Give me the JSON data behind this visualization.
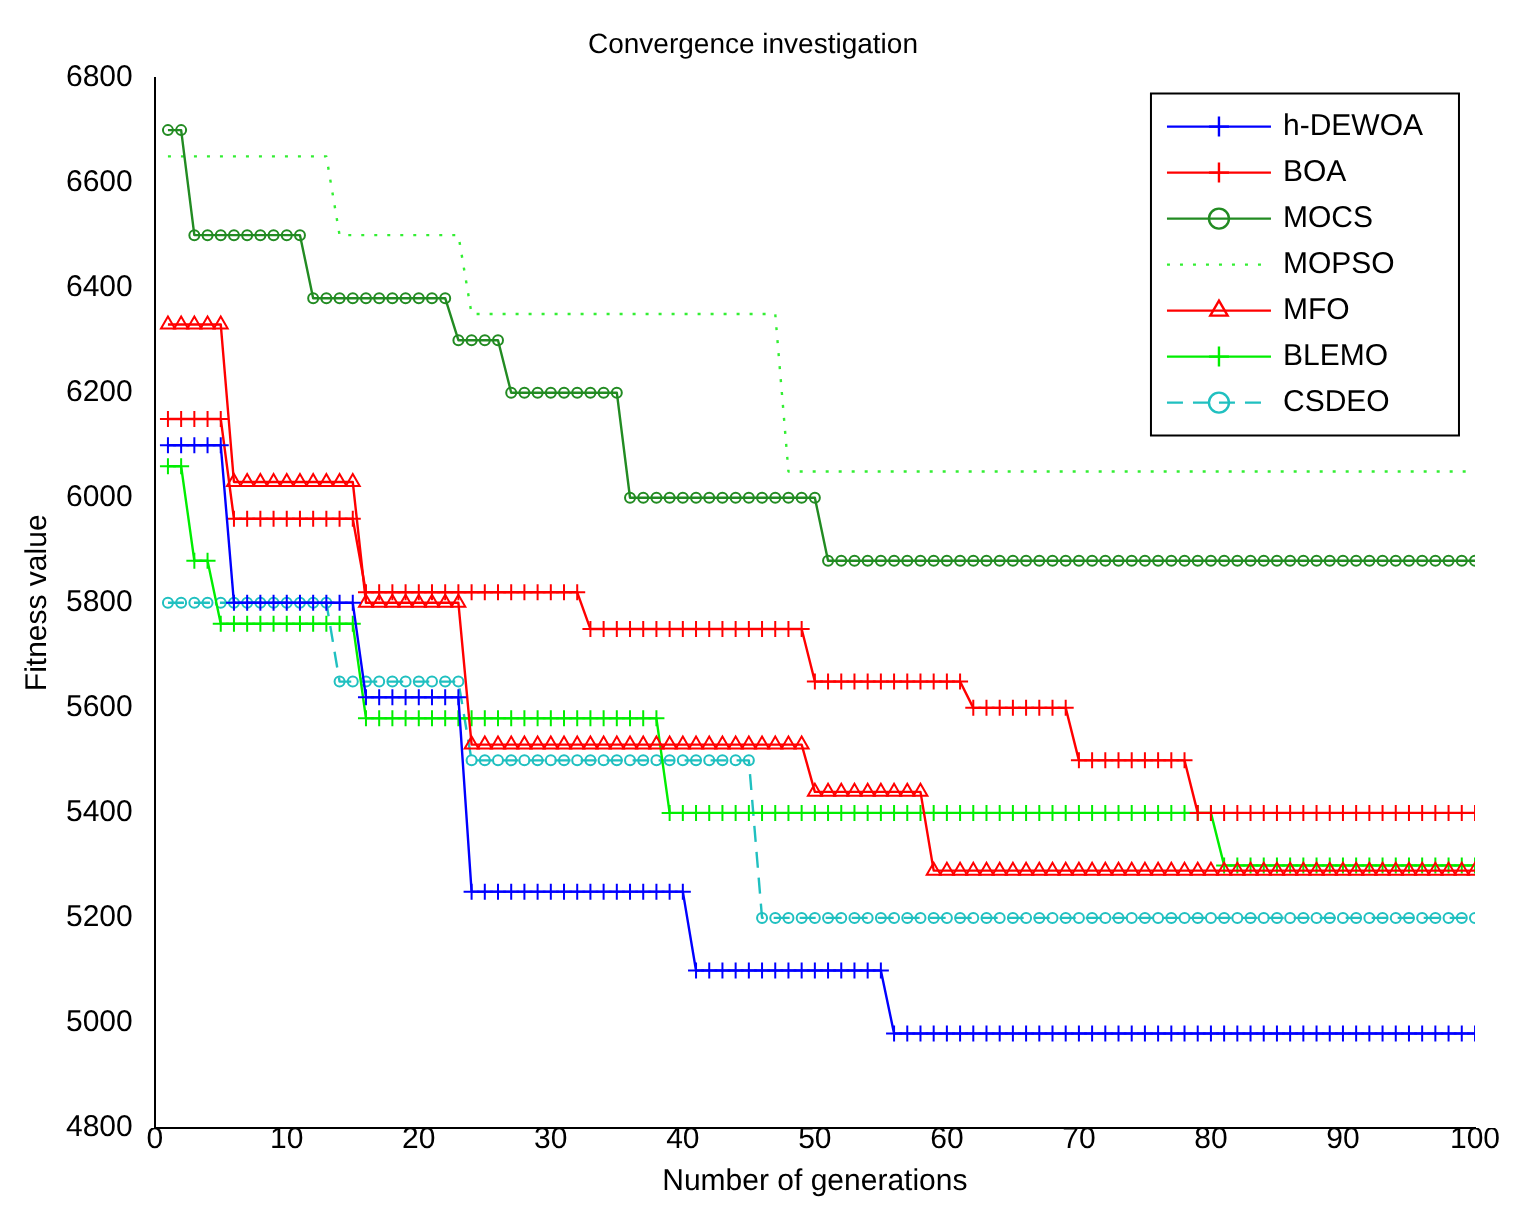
{
  "chart_data": {
    "type": "line",
    "title": "Convergence investigation",
    "xlabel": "Number of generations",
    "ylabel": "Fitness value",
    "x": [
      1,
      2,
      3,
      4,
      5,
      6,
      7,
      8,
      9,
      10,
      11,
      12,
      13,
      14,
      15,
      16,
      17,
      18,
      19,
      20,
      21,
      22,
      23,
      24,
      25,
      26,
      27,
      28,
      29,
      30,
      31,
      32,
      33,
      34,
      35,
      36,
      37,
      38,
      39,
      40,
      41,
      42,
      43,
      44,
      45,
      46,
      47,
      48,
      49,
      50,
      51,
      52,
      53,
      54,
      55,
      56,
      57,
      58,
      59,
      60,
      61,
      62,
      63,
      64,
      65,
      66,
      67,
      68,
      69,
      70,
      71,
      72,
      73,
      74,
      75,
      76,
      77,
      78,
      79,
      80,
      81,
      82,
      83,
      84,
      85,
      86,
      87,
      88,
      89,
      90,
      91,
      92,
      93,
      94,
      95,
      96,
      97,
      98,
      99,
      100
    ],
    "xlim": [
      0,
      100
    ],
    "xticks": [
      0,
      10,
      20,
      30,
      40,
      50,
      60,
      70,
      80,
      90,
      100
    ],
    "ylim": [
      4800,
      6800
    ],
    "yticks": [
      4800,
      5000,
      5200,
      5400,
      5600,
      5800,
      6000,
      6200,
      6400,
      6600,
      6800
    ],
    "grid": false,
    "legend": "top right",
    "series": [
      {
        "name": "h-DEWOA",
        "color": "#0000ff",
        "marker": "cross",
        "line_style": "solid",
        "values": [
          6100,
          6100,
          6100,
          6100,
          6100,
          5800,
          5800,
          5800,
          5800,
          5800,
          5800,
          5800,
          5800,
          5800,
          5800,
          5620,
          5620,
          5620,
          5620,
          5620,
          5620,
          5620,
          5620,
          5250,
          5250,
          5250,
          5250,
          5250,
          5250,
          5250,
          5250,
          5250,
          5250,
          5250,
          5250,
          5250,
          5250,
          5250,
          5250,
          5250,
          5100,
          5100,
          5100,
          5100,
          5100,
          5100,
          5100,
          5100,
          5100,
          5100,
          5100,
          5100,
          5100,
          5100,
          5100,
          4980,
          4980,
          4980,
          4980,
          4980,
          4980,
          4980,
          4980,
          4980,
          4980,
          4980,
          4980,
          4980,
          4980,
          4980,
          4980,
          4980,
          4980,
          4980,
          4980,
          4980,
          4980,
          4980,
          4980,
          4980,
          4980,
          4980,
          4980,
          4980,
          4980,
          4980,
          4980,
          4980,
          4980,
          4980,
          4980,
          4980,
          4980,
          4980,
          4980,
          4980,
          4980,
          4980,
          4980,
          4980
        ]
      },
      {
        "name": "BOA",
        "color": "#ff0000",
        "marker": "cross",
        "line_style": "solid",
        "values": [
          6150,
          6150,
          6150,
          6150,
          6150,
          5960,
          5960,
          5960,
          5960,
          5960,
          5960,
          5960,
          5960,
          5960,
          5960,
          5820,
          5820,
          5820,
          5820,
          5820,
          5820,
          5820,
          5820,
          5820,
          5820,
          5820,
          5820,
          5820,
          5820,
          5820,
          5820,
          5820,
          5750,
          5750,
          5750,
          5750,
          5750,
          5750,
          5750,
          5750,
          5750,
          5750,
          5750,
          5750,
          5750,
          5750,
          5750,
          5750,
          5750,
          5650,
          5650,
          5650,
          5650,
          5650,
          5650,
          5650,
          5650,
          5650,
          5650,
          5650,
          5650,
          5600,
          5600,
          5600,
          5600,
          5600,
          5600,
          5600,
          5600,
          5500,
          5500,
          5500,
          5500,
          5500,
          5500,
          5500,
          5500,
          5500,
          5400,
          5400,
          5400,
          5400,
          5400,
          5400,
          5400,
          5400,
          5400,
          5400,
          5400,
          5400,
          5400,
          5400,
          5400,
          5400,
          5400,
          5400,
          5400,
          5400,
          5400,
          5400
        ]
      },
      {
        "name": "MOCS",
        "color": "#228b22",
        "marker": "circle",
        "line_style": "solid",
        "values": [
          6700,
          6700,
          6500,
          6500,
          6500,
          6500,
          6500,
          6500,
          6500,
          6500,
          6500,
          6380,
          6380,
          6380,
          6380,
          6380,
          6380,
          6380,
          6380,
          6380,
          6380,
          6380,
          6300,
          6300,
          6300,
          6300,
          6200,
          6200,
          6200,
          6200,
          6200,
          6200,
          6200,
          6200,
          6200,
          6000,
          6000,
          6000,
          6000,
          6000,
          6000,
          6000,
          6000,
          6000,
          6000,
          6000,
          6000,
          6000,
          6000,
          6000,
          5880,
          5880,
          5880,
          5880,
          5880,
          5880,
          5880,
          5880,
          5880,
          5880,
          5880,
          5880,
          5880,
          5880,
          5880,
          5880,
          5880,
          5880,
          5880,
          5880,
          5880,
          5880,
          5880,
          5880,
          5880,
          5880,
          5880,
          5880,
          5880,
          5880,
          5880,
          5880,
          5880,
          5880,
          5880,
          5880,
          5880,
          5880,
          5880,
          5880,
          5880,
          5880,
          5880,
          5880,
          5880,
          5880,
          5880,
          5880,
          5880,
          5880
        ]
      },
      {
        "name": "MOPSO",
        "color": "#33ee33",
        "marker": "none",
        "line_style": "dotted",
        "values": [
          6650,
          6650,
          6650,
          6650,
          6650,
          6650,
          6650,
          6650,
          6650,
          6650,
          6650,
          6650,
          6650,
          6500,
          6500,
          6500,
          6500,
          6500,
          6500,
          6500,
          6500,
          6500,
          6500,
          6350,
          6350,
          6350,
          6350,
          6350,
          6350,
          6350,
          6350,
          6350,
          6350,
          6350,
          6350,
          6350,
          6350,
          6350,
          6350,
          6350,
          6350,
          6350,
          6350,
          6350,
          6350,
          6350,
          6350,
          6050,
          6050,
          6050,
          6050,
          6050,
          6050,
          6050,
          6050,
          6050,
          6050,
          6050,
          6050,
          6050,
          6050,
          6050,
          6050,
          6050,
          6050,
          6050,
          6050,
          6050,
          6050,
          6050,
          6050,
          6050,
          6050,
          6050,
          6050,
          6050,
          6050,
          6050,
          6050,
          6050,
          6050,
          6050,
          6050,
          6050,
          6050,
          6050,
          6050,
          6050,
          6050,
          6050,
          6050,
          6050,
          6050,
          6050,
          6050,
          6050,
          6050,
          6050,
          6050,
          6050
        ]
      },
      {
        "name": "MFO",
        "color": "#ff0000",
        "marker": "triangle",
        "line_style": "solid",
        "values": [
          6330,
          6330,
          6330,
          6330,
          6330,
          6030,
          6030,
          6030,
          6030,
          6030,
          6030,
          6030,
          6030,
          6030,
          6030,
          5800,
          5800,
          5800,
          5800,
          5800,
          5800,
          5800,
          5800,
          5530,
          5530,
          5530,
          5530,
          5530,
          5530,
          5530,
          5530,
          5530,
          5530,
          5530,
          5530,
          5530,
          5530,
          5530,
          5530,
          5530,
          5530,
          5530,
          5530,
          5530,
          5530,
          5530,
          5530,
          5530,
          5530,
          5440,
          5440,
          5440,
          5440,
          5440,
          5440,
          5440,
          5440,
          5440,
          5290,
          5290,
          5290,
          5290,
          5290,
          5290,
          5290,
          5290,
          5290,
          5290,
          5290,
          5290,
          5290,
          5290,
          5290,
          5290,
          5290,
          5290,
          5290,
          5290,
          5290,
          5290,
          5290,
          5290,
          5290,
          5290,
          5290,
          5290,
          5290,
          5290,
          5290,
          5290,
          5290,
          5290,
          5290,
          5290,
          5290,
          5290,
          5290,
          5290,
          5290,
          5290
        ]
      },
      {
        "name": "BLEMO",
        "color": "#00ee00",
        "marker": "cross",
        "line_style": "solid",
        "values": [
          6060,
          6060,
          5880,
          5880,
          5760,
          5760,
          5760,
          5760,
          5760,
          5760,
          5760,
          5760,
          5760,
          5760,
          5760,
          5580,
          5580,
          5580,
          5580,
          5580,
          5580,
          5580,
          5580,
          5580,
          5580,
          5580,
          5580,
          5580,
          5580,
          5580,
          5580,
          5580,
          5580,
          5580,
          5580,
          5580,
          5580,
          5580,
          5400,
          5400,
          5400,
          5400,
          5400,
          5400,
          5400,
          5400,
          5400,
          5400,
          5400,
          5400,
          5400,
          5400,
          5400,
          5400,
          5400,
          5400,
          5400,
          5400,
          5400,
          5400,
          5400,
          5400,
          5400,
          5400,
          5400,
          5400,
          5400,
          5400,
          5400,
          5400,
          5400,
          5400,
          5400,
          5400,
          5400,
          5400,
          5400,
          5400,
          5400,
          5400,
          5300,
          5300,
          5300,
          5300,
          5300,
          5300,
          5300,
          5300,
          5300,
          5300,
          5300,
          5300,
          5300,
          5300,
          5300,
          5300,
          5300,
          5300,
          5300,
          5300
        ]
      },
      {
        "name": "CSDEO",
        "color": "#20c0c0",
        "marker": "circle",
        "line_style": "dashed",
        "values": [
          5800,
          5800,
          5800,
          5800,
          5800,
          5800,
          5800,
          5800,
          5800,
          5800,
          5800,
          5800,
          5800,
          5650,
          5650,
          5650,
          5650,
          5650,
          5650,
          5650,
          5650,
          5650,
          5650,
          5500,
          5500,
          5500,
          5500,
          5500,
          5500,
          5500,
          5500,
          5500,
          5500,
          5500,
          5500,
          5500,
          5500,
          5500,
          5500,
          5500,
          5500,
          5500,
          5500,
          5500,
          5500,
          5200,
          5200,
          5200,
          5200,
          5200,
          5200,
          5200,
          5200,
          5200,
          5200,
          5200,
          5200,
          5200,
          5200,
          5200,
          5200,
          5200,
          5200,
          5200,
          5200,
          5200,
          5200,
          5200,
          5200,
          5200,
          5200,
          5200,
          5200,
          5200,
          5200,
          5200,
          5200,
          5200,
          5200,
          5200,
          5200,
          5200,
          5200,
          5200,
          5200,
          5200,
          5200,
          5200,
          5200,
          5200,
          5200,
          5200,
          5200,
          5200,
          5200,
          5200,
          5200,
          5200,
          5200,
          5200
        ]
      }
    ]
  }
}
